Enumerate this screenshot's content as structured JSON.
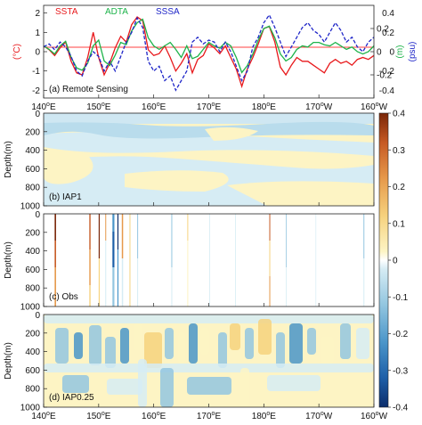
{
  "colors": {
    "ssta": "#e8191c",
    "adta": "#1db34a",
    "sssa": "#1f26c8",
    "zero_line": "#ff0000",
    "colormap": [
      "#0c2d6b",
      "#1e5fa8",
      "#4a95c9",
      "#93c6e0",
      "#d6ecf4",
      "#ffffff",
      "#fdf4c4",
      "#f6d27e",
      "#e6984a",
      "#c65a24",
      "#7a2608"
    ]
  },
  "chart_data": [
    {
      "type": "line",
      "panel_label": "(a) Remote Sensing",
      "x_domain": [
        140,
        200
      ],
      "left_axis": {
        "label": "(°C)",
        "ticks": [
          2,
          1,
          0,
          -1,
          -2
        ],
        "range": [
          -2.4,
          2.4
        ]
      },
      "right_axis_1": {
        "label": "(m)",
        "ticks": [
          0.2,
          0,
          -0.2
        ],
        "range": [
          -0.4,
          0.4
        ]
      },
      "right_axis_2": {
        "label": "(psu)",
        "ticks": [
          0.4,
          0.2,
          0,
          -0.2,
          -0.4
        ],
        "range": [
          -0.48,
          0.48
        ]
      },
      "legend": [
        "SSTA",
        "ADTA",
        "SSSA"
      ],
      "series": [
        {
          "name": "SSTA",
          "axis": "left",
          "x": [
            140,
            141,
            142,
            143,
            144,
            145,
            146,
            147,
            148,
            149,
            150,
            151,
            152,
            153,
            154,
            155,
            156,
            157,
            158,
            159,
            160,
            161,
            162,
            163,
            164,
            165,
            166,
            167,
            168,
            169,
            170,
            171,
            172,
            173,
            174,
            175,
            176,
            177,
            178,
            179,
            180,
            181,
            182,
            183,
            184,
            185,
            186,
            187,
            188,
            189,
            190,
            191,
            192,
            193,
            194,
            195,
            196,
            197,
            198,
            199,
            200
          ],
          "values": [
            0.3,
            0.1,
            -0.2,
            0.2,
            0.5,
            -0.5,
            -1.1,
            -1.2,
            -0.3,
            1.0,
            -0.3,
            -1.2,
            -0.6,
            0.2,
            0.8,
            0.5,
            1.4,
            1.8,
            1.6,
            0.1,
            -0.2,
            -0.1,
            0.3,
            -0.3,
            -1.0,
            -0.6,
            -0.1,
            -1.1,
            -0.4,
            -0.2,
            0.4,
            0.2,
            -0.1,
            0.3,
            -0.3,
            -0.9,
            -1.8,
            -0.9,
            -0.3,
            0.4,
            1.2,
            1.3,
            0.5,
            -0.8,
            -1.2,
            -0.7,
            -0.3,
            -0.5,
            -0.5,
            -0.7,
            -0.9,
            -1.1,
            -0.6,
            -0.4,
            -0.6,
            -0.5,
            -0.7,
            -0.4,
            -0.3,
            -0.4,
            -0.2
          ]
        },
        {
          "name": "ADTA",
          "axis": "right_axis_1",
          "x": [
            140,
            141,
            142,
            143,
            144,
            145,
            146,
            147,
            148,
            149,
            150,
            151,
            152,
            153,
            154,
            155,
            156,
            157,
            158,
            159,
            160,
            161,
            162,
            163,
            164,
            165,
            166,
            167,
            168,
            169,
            170,
            171,
            172,
            173,
            174,
            175,
            176,
            177,
            178,
            179,
            180,
            181,
            182,
            183,
            184,
            185,
            186,
            187,
            188,
            189,
            190,
            191,
            192,
            193,
            194,
            195,
            196,
            197,
            198,
            199,
            200
          ],
          "values": [
            0.05,
            0.02,
            -0.02,
            0.05,
            0.09,
            -0.05,
            -0.14,
            -0.16,
            -0.1,
            0.05,
            0.1,
            -0.08,
            -0.12,
            -0.03,
            0.08,
            0.06,
            0.18,
            0.25,
            0.28,
            0.12,
            0.05,
            0.02,
            0.05,
            0.08,
            0.02,
            -0.05,
            0.05,
            -0.06,
            -0.04,
            0.02,
            0.08,
            0.05,
            0.03,
            0.08,
            0.05,
            -0.05,
            -0.18,
            -0.12,
            -0.02,
            0.1,
            0.2,
            0.22,
            0.12,
            -0.02,
            -0.08,
            -0.05,
            0.02,
            0.05,
            0.04,
            0.08,
            0.08,
            0.06,
            0.05,
            0.08,
            0.05,
            0.02,
            0.04,
            0.0,
            -0.02,
            0.0,
            0.05
          ]
        },
        {
          "name": "SSSA",
          "axis": "right_axis_2",
          "x": [
            140,
            141,
            142,
            143,
            144,
            145,
            146,
            147,
            148,
            149,
            150,
            151,
            152,
            153,
            154,
            155,
            156,
            157,
            158,
            159,
            160,
            161,
            162,
            163,
            164,
            165,
            166,
            167,
            168,
            169,
            170,
            171,
            172,
            173,
            174,
            175,
            176,
            177,
            178,
            179,
            180,
            181,
            182,
            183,
            184,
            185,
            186,
            187,
            188,
            189,
            190,
            191,
            192,
            193,
            194,
            195,
            196,
            197,
            198,
            199,
            200
          ],
          "values": [
            0.05,
            0.08,
            0.02,
            0.1,
            0.05,
            -0.05,
            -0.2,
            -0.25,
            -0.1,
            0.0,
            -0.05,
            -0.2,
            -0.1,
            -0.2,
            -0.05,
            0.1,
            0.2,
            0.35,
            0.25,
            -0.1,
            -0.2,
            -0.15,
            -0.3,
            -0.25,
            -0.4,
            -0.3,
            -0.2,
            0.1,
            0.15,
            0.08,
            0.12,
            0.1,
            0.0,
            0.1,
            0.0,
            -0.15,
            -0.3,
            -0.2,
            0.05,
            0.15,
            0.3,
            0.38,
            0.25,
            0.1,
            -0.05,
            0.05,
            0.15,
            0.25,
            0.3,
            0.22,
            0.18,
            0.1,
            0.2,
            0.3,
            0.22,
            0.1,
            0.15,
            0.05,
            0.0,
            0.1,
            0.15
          ]
        }
      ]
    },
    {
      "type": "heatmap",
      "panels": [
        "(b) IAP1",
        "(c) Obs",
        "(d) IAP0.25"
      ],
      "ylabel": "Depth(m)",
      "y_ticks": [
        200,
        400,
        600,
        800,
        1000
      ],
      "y_first_tick": "0",
      "y_range": [
        0,
        1000
      ],
      "x_range": [
        140,
        200
      ],
      "x_ticks": [
        {
          "deg": "140",
          "hem": "E"
        },
        {
          "deg": "150",
          "hem": "E"
        },
        {
          "deg": "160",
          "hem": "E"
        },
        {
          "deg": "170",
          "hem": "E"
        },
        {
          "deg": "180",
          "hem": "E"
        },
        {
          "deg": "170",
          "hem": "W"
        },
        {
          "deg": "160",
          "hem": "W"
        }
      ],
      "colorbar": {
        "range": [
          -0.4,
          0.4
        ],
        "ticks": [
          "0.4",
          "0.3",
          "0.2",
          "0.1",
          "0",
          "-0.1",
          "-0.2",
          "-0.3",
          "-0.4"
        ]
      }
    }
  ]
}
